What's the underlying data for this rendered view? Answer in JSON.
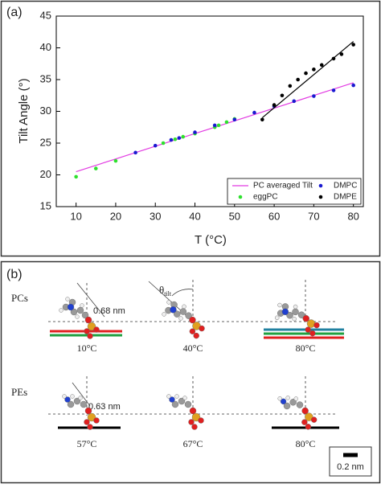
{
  "chart_data": {
    "type": "scatter",
    "panel_label": "(a)",
    "x_label": "T (°C)",
    "y_label": "Tilt Angle (°)",
    "xlim": [
      5,
      82.5
    ],
    "xticks": [
      10,
      20,
      30,
      40,
      50,
      60,
      70,
      80
    ],
    "ylim": [
      15,
      45
    ],
    "yticks": [
      15,
      20,
      25,
      30,
      35,
      40,
      45
    ],
    "grid": false,
    "legend": "lower right",
    "series": [
      {
        "name": "PC averaged Tilt",
        "color": "#e23be2",
        "kind": "line",
        "x": [
          10,
          80
        ],
        "values": [
          20.5,
          34.5
        ]
      },
      {
        "name": "eggPC",
        "color": "#2ee02e",
        "kind": "scatter",
        "x": [
          10,
          15,
          20,
          32,
          35,
          37,
          40,
          45,
          46,
          48,
          50
        ],
        "values": [
          19.7,
          21,
          22.2,
          25,
          25.6,
          26,
          26.5,
          27.5,
          27.8,
          28.3,
          28.8
        ]
      },
      {
        "name": "DMPC",
        "color": "#1a1ad0",
        "kind": "scatter",
        "x": [
          25,
          30,
          34,
          36,
          40,
          45,
          50,
          55,
          60,
          65,
          70,
          75,
          80
        ],
        "values": [
          23.5,
          24.6,
          25.5,
          25.8,
          26.7,
          27.8,
          28.7,
          29.8,
          30.8,
          31.6,
          32.4,
          33.3,
          34.1
        ]
      },
      {
        "name": "DMPE",
        "color": "#000000",
        "kind": "scatter",
        "x": [
          57,
          60,
          62,
          64,
          66,
          68,
          70,
          72,
          75,
          77,
          80
        ],
        "values": [
          28.7,
          31,
          32.5,
          34,
          35,
          36,
          36.6,
          37.3,
          38.3,
          39,
          40.5
        ]
      },
      {
        "color": "#000000",
        "kind": "line",
        "x": [
          57,
          80
        ],
        "values": [
          29,
          41
        ]
      }
    ]
  },
  "panel_b": {
    "panel_label": "(b)",
    "pcs_label": "PCs",
    "pcs_length": "0.68 nm",
    "theta_symbol": "θ",
    "theta_subscript": "tilt",
    "pcs_temps": [
      "10°C",
      "40°C",
      "80°C"
    ],
    "pes_label": "PEs",
    "pes_length": "0.63 nm",
    "pes_temps": [
      "57°C",
      "67°C",
      "80°C"
    ],
    "scale_label": "0.2 nm"
  }
}
